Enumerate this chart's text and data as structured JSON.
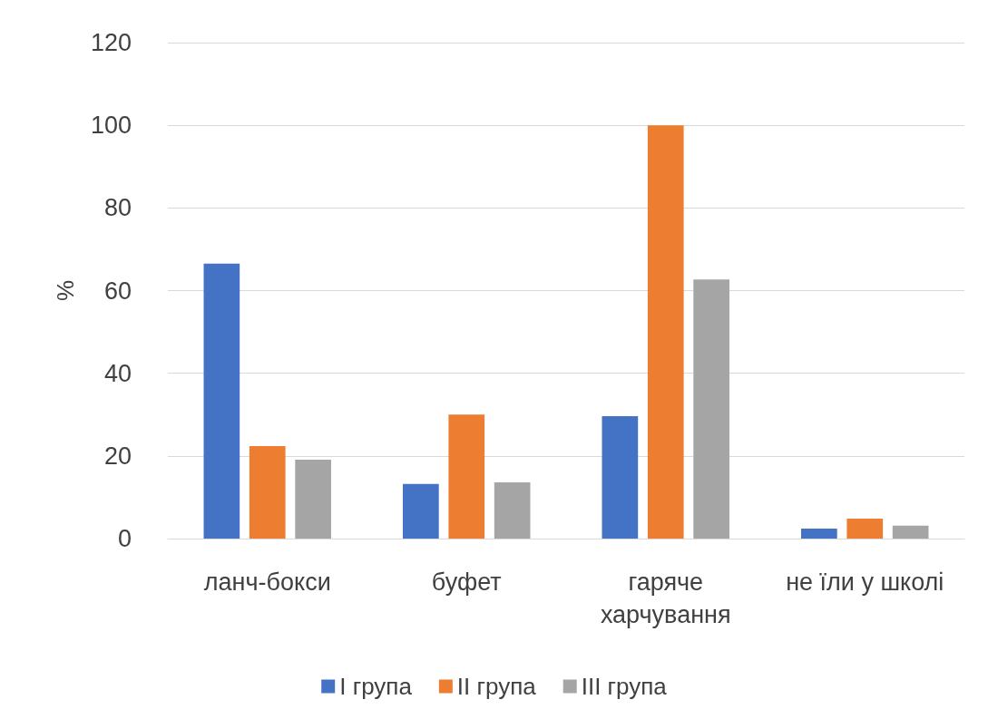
{
  "chart_data": {
    "type": "bar",
    "categories": [
      "ланч-бокси",
      "буфет",
      "гаряче харчування",
      "не їли у школі"
    ],
    "series": [
      {
        "name": "I група",
        "color": "#4472c4",
        "values": [
          66.5,
          13.2,
          29.6,
          2.4
        ]
      },
      {
        "name": "II група",
        "color": "#ed7d31",
        "values": [
          22.4,
          30.0,
          100,
          4.8
        ]
      },
      {
        "name": "III група",
        "color": "#a5a5a5",
        "values": [
          19.1,
          13.6,
          62.7,
          3.1
        ]
      }
    ],
    "ylabel": "%",
    "ylim": [
      0,
      120
    ],
    "yticks": [
      0,
      20,
      40,
      60,
      80,
      100,
      120
    ],
    "grid": "y",
    "legend": "bottom"
  }
}
